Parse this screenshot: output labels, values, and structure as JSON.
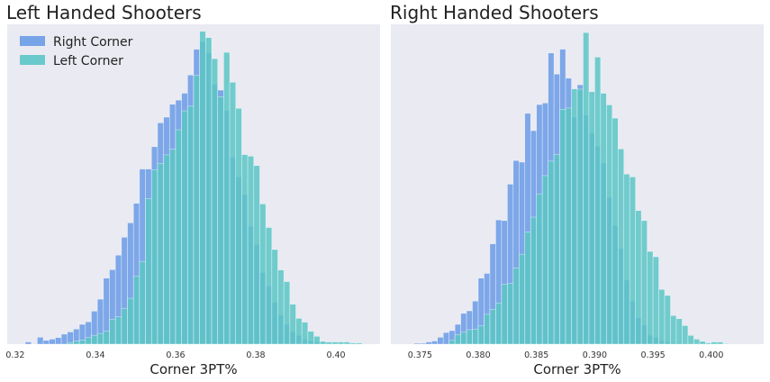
{
  "figure": {
    "colors": {
      "background": "#eaeaf2",
      "right_corner": "#6a9be6",
      "left_corner": "#5cc6c6"
    }
  },
  "chart_data": [
    {
      "type": "bar",
      "title": "Left Handed Shooters",
      "xlabel": "Corner 3PT%",
      "ylabel": "",
      "xlim": [
        0.318,
        0.411
      ],
      "ylim": [
        0,
        1
      ],
      "x_ticks": [
        "0.32",
        "0.34",
        "0.36",
        "0.38",
        "0.40"
      ],
      "x_tick_values": [
        0.32,
        0.34,
        0.36,
        0.38,
        0.4
      ],
      "grid": false,
      "legend": "top-left",
      "series": [
        {
          "name": "Right Corner",
          "color": "#6a9be6",
          "bin_width": 0.0015,
          "bin_start": 0.3225,
          "values": [
            0.007,
            0.0,
            0.022,
            0.012,
            0.016,
            0.021,
            0.032,
            0.039,
            0.048,
            0.063,
            0.071,
            0.105,
            0.143,
            0.21,
            0.237,
            0.283,
            0.34,
            0.386,
            0.448,
            0.557,
            0.557,
            0.628,
            0.704,
            0.722,
            0.763,
            0.776,
            0.798,
            0.856,
            0.938,
            0.962,
            0.927,
            0.827,
            0.808,
            0.743,
            0.595,
            0.532,
            0.476,
            0.375,
            0.317,
            0.228,
            0.185,
            0.133,
            0.092,
            0.063,
            0.039,
            0.028,
            0.016,
            0.011,
            0.007,
            0.004,
            0.002
          ]
        },
        {
          "name": "Left Corner",
          "color": "#5cc6c6",
          "bin_width": 0.0015,
          "bin_start": 0.3225,
          "values": [
            0.0,
            0.0,
            0.0,
            0.0,
            0.0,
            0.0,
            0.0,
            0.005,
            0.01,
            0.013,
            0.021,
            0.028,
            0.034,
            0.041,
            0.079,
            0.087,
            0.114,
            0.146,
            0.216,
            0.263,
            0.463,
            0.554,
            0.575,
            0.602,
            0.62,
            0.682,
            0.742,
            0.757,
            0.855,
            0.995,
            0.975,
            0.908,
            0.787,
            0.928,
            0.833,
            0.75,
            0.603,
            0.598,
            0.568,
            0.446,
            0.371,
            0.301,
            0.236,
            0.199,
            0.127,
            0.082,
            0.07,
            0.041,
            0.025,
            0.009,
            0.007,
            0.007,
            0.007,
            0.007,
            0.004,
            0.004
          ]
        }
      ]
    },
    {
      "type": "bar",
      "title": "Right Handed Shooters",
      "xlabel": "Corner 3PT%",
      "ylabel": "",
      "xlim": [
        0.3725,
        0.4045
      ],
      "ylim": [
        0,
        1
      ],
      "x_ticks": [
        "0.375",
        "0.380",
        "0.385",
        "0.390",
        "0.395",
        "0.400"
      ],
      "x_tick_values": [
        0.375,
        0.38,
        0.385,
        0.39,
        0.395,
        0.4
      ],
      "grid": false,
      "legend": "none",
      "series": [
        {
          "name": "Right Corner",
          "color": "#6a9be6",
          "bin_width": 0.0005,
          "bin_start": 0.3745,
          "values": [
            0.003,
            0.003,
            0.007,
            0.01,
            0.022,
            0.037,
            0.043,
            0.063,
            0.098,
            0.106,
            0.137,
            0.21,
            0.225,
            0.319,
            0.395,
            0.393,
            0.509,
            0.584,
            0.579,
            0.734,
            0.679,
            0.762,
            0.767,
            0.926,
            0.859,
            0.938,
            0.846,
            0.722,
            0.825,
            0.728,
            0.672,
            0.63,
            0.576,
            0.467,
            0.377,
            0.304,
            0.204,
            0.137,
            0.084,
            0.061,
            0.028,
            0.022,
            0.012,
            0.008,
            0.004,
            0.004,
            0.002
          ]
        },
        {
          "name": "Left Corner",
          "color": "#5cc6c6",
          "bin_width": 0.0005,
          "bin_start": 0.3745,
          "values": [
            0.0,
            0.0,
            0.0,
            0.0,
            0.0,
            0.0,
            0.012,
            0.03,
            0.038,
            0.046,
            0.047,
            0.058,
            0.095,
            0.111,
            0.131,
            0.191,
            0.193,
            0.242,
            0.286,
            0.357,
            0.404,
            0.478,
            0.536,
            0.582,
            0.603,
            0.747,
            0.751,
            0.812,
            0.811,
            0.991,
            0.803,
            0.913,
            0.798,
            0.761,
            0.719,
            0.621,
            0.541,
            0.532,
            0.425,
            0.393,
            0.295,
            0.278,
            0.174,
            0.155,
            0.091,
            0.081,
            0.059,
            0.028,
            0.016,
            0.009,
            0.004,
            0.007,
            0.007,
            0.002
          ]
        }
      ]
    }
  ]
}
